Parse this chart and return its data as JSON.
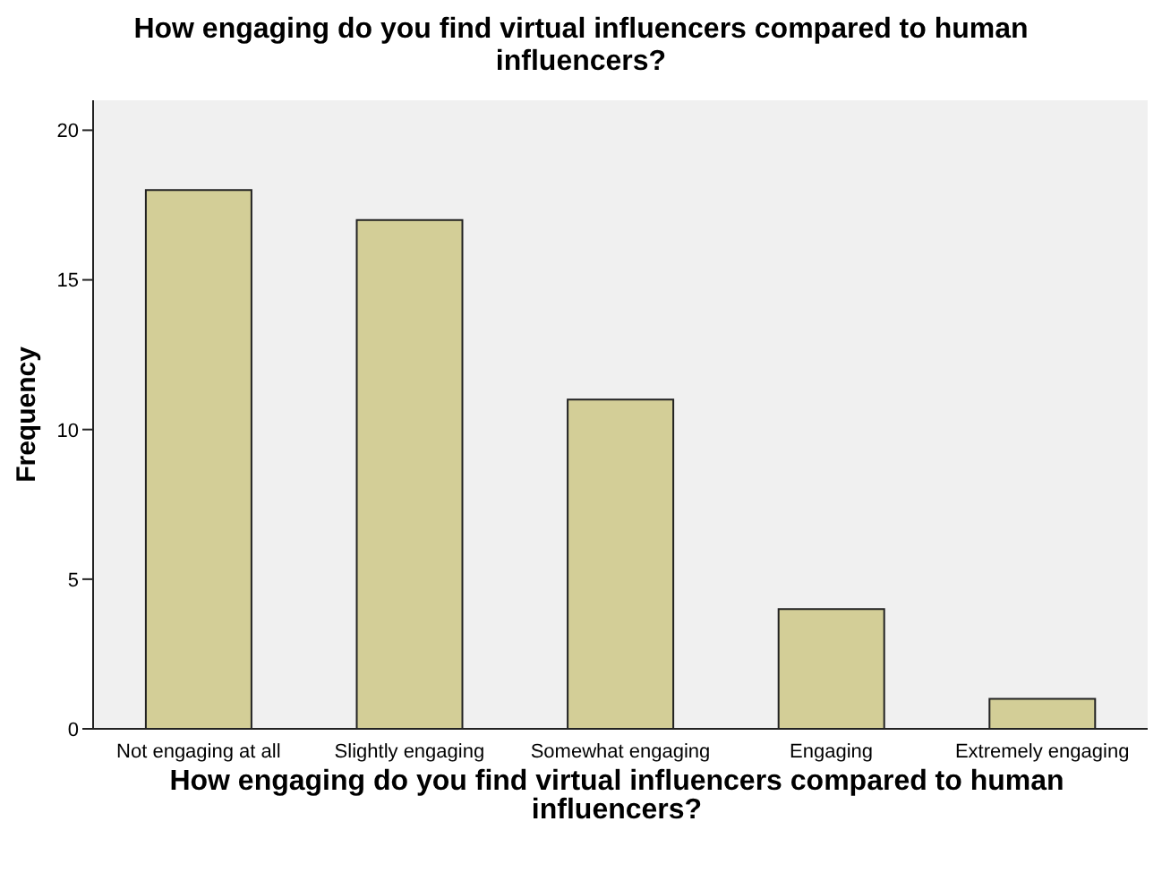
{
  "chart_data": {
    "type": "bar",
    "title": "How engaging do you find virtual influencers compared to human influencers?",
    "xlabel": "How engaging do you find virtual influencers compared to human influencers?",
    "ylabel": "Frequency",
    "categories": [
      "Not engaging at all",
      "Slightly engaging",
      "Somewhat engaging",
      "Engaging",
      "Extremely engaging"
    ],
    "values": [
      18,
      17,
      11,
      4,
      1
    ],
    "color": "#d3ce97",
    "ylim": [
      0,
      21
    ],
    "yticks": [
      0,
      5,
      10,
      15,
      20
    ],
    "grid": false
  }
}
